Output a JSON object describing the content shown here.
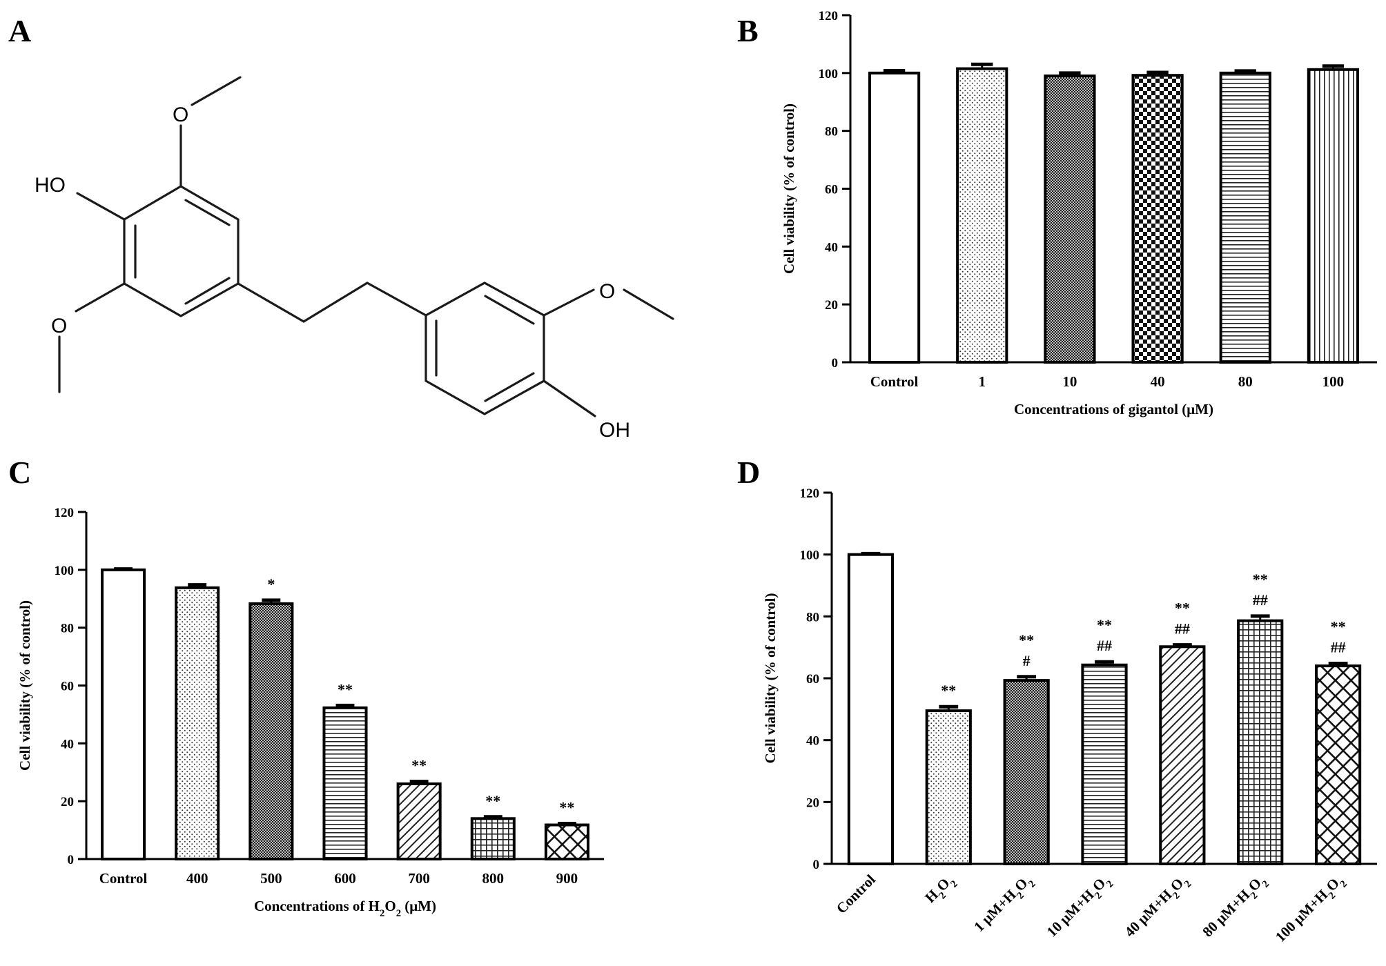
{
  "panels": {
    "A": {
      "letter": "A"
    },
    "B": {
      "letter": "B"
    },
    "C": {
      "letter": "C"
    },
    "D": {
      "letter": "D"
    }
  },
  "molecule": {
    "atoms": {
      "ho": "HO",
      "oh": "OH",
      "o1": "O",
      "o2": "O",
      "o3": "O"
    },
    "outline_color": "#1a1a1a"
  },
  "colors": {
    "bar_outline": "#000000",
    "bar_fill": "#ffffff",
    "pattern": "#222222"
  },
  "chart_data": [
    {
      "panel": "B",
      "type": "bar",
      "categories": [
        "Control",
        "1",
        "10",
        "40",
        "80",
        "100"
      ],
      "values": [
        100,
        101.5,
        99,
        99.2,
        100,
        101.2
      ],
      "errors": [
        0.8,
        1.5,
        1.0,
        1.0,
        0.7,
        1.2
      ],
      "patterns": [
        "none",
        "dots",
        "dense-check",
        "checker",
        "hlines",
        "vlines"
      ],
      "annotations": [],
      "xlabel": "Concentrations of gigantol  (μM)",
      "xlabel_parts": [],
      "ylabel": "Cell viability  (% of control)",
      "ylim": [
        0,
        120
      ],
      "yticks": [
        0,
        20,
        40,
        60,
        80,
        100,
        120
      ],
      "rotated_labels": false
    },
    {
      "panel": "C",
      "type": "bar",
      "categories": [
        "Control",
        "400",
        "500",
        "600",
        "700",
        "800",
        "900"
      ],
      "values": [
        100,
        93.8,
        88.3,
        52.3,
        26,
        14,
        11.8
      ],
      "errors": [
        0.3,
        1.0,
        1.2,
        0.8,
        0.8,
        0.6,
        0.5
      ],
      "patterns": [
        "none",
        "dots",
        "dense-check",
        "hlines",
        "diag",
        "grid",
        "crosshatch"
      ],
      "annotations": [
        [],
        [],
        [
          "*"
        ],
        [
          "**"
        ],
        [
          "**"
        ],
        [
          "**"
        ],
        [
          "**"
        ]
      ],
      "xlabel": "Concentrations of H2O2  (μM)",
      "xlabel_parts": [
        {
          "t": "Concentrations of H"
        },
        {
          "t": "2",
          "sub": true
        },
        {
          "t": "O"
        },
        {
          "t": "2",
          "sub": true
        },
        {
          "t": "  (μM)"
        }
      ],
      "ylabel": "Cell viability  (% of control)",
      "ylim": [
        0,
        120
      ],
      "yticks": [
        0,
        20,
        40,
        60,
        80,
        100,
        120
      ],
      "rotated_labels": false
    },
    {
      "panel": "D",
      "type": "bar",
      "categories": [
        "Control",
        "H2O2",
        "1 μM+H2O2",
        "10 μM+H2O2",
        "40 μM+H2O2",
        "80 μM+H2O2",
        "100 μM+H2O2"
      ],
      "category_parts": [
        [
          {
            "t": "Control"
          }
        ],
        [
          {
            "t": "H"
          },
          {
            "t": "2",
            "sub": true
          },
          {
            "t": "O"
          },
          {
            "t": "2",
            "sub": true
          }
        ],
        [
          {
            "t": "1 μM+H"
          },
          {
            "t": "2",
            "sub": true
          },
          {
            "t": "O"
          },
          {
            "t": "2",
            "sub": true
          }
        ],
        [
          {
            "t": "10 μM+H"
          },
          {
            "t": "2",
            "sub": true
          },
          {
            "t": "O"
          },
          {
            "t": "2",
            "sub": true
          }
        ],
        [
          {
            "t": "40 μM+H"
          },
          {
            "t": "2",
            "sub": true
          },
          {
            "t": "O"
          },
          {
            "t": "2",
            "sub": true
          }
        ],
        [
          {
            "t": "80 μM+H"
          },
          {
            "t": "2",
            "sub": true
          },
          {
            "t": "O"
          },
          {
            "t": "2",
            "sub": true
          }
        ],
        [
          {
            "t": "100 μM+H"
          },
          {
            "t": "2",
            "sub": true
          },
          {
            "t": "O"
          },
          {
            "t": "2",
            "sub": true
          }
        ]
      ],
      "values": [
        100,
        49.5,
        59.3,
        64.3,
        70.2,
        78.6,
        64
      ],
      "errors": [
        0.3,
        1.3,
        1.2,
        1.0,
        0.6,
        1.5,
        0.8
      ],
      "patterns": [
        "none",
        "dots",
        "dense-check",
        "hlines",
        "diag",
        "grid",
        "crosshatch"
      ],
      "annotations": [
        [],
        [
          "**"
        ],
        [
          "**",
          "#"
        ],
        [
          "**",
          "##"
        ],
        [
          "**",
          "##"
        ],
        [
          "**",
          "##"
        ],
        [
          "**",
          "##"
        ]
      ],
      "xlabel": "",
      "xlabel_parts": [],
      "ylabel": "Cell viability  (% of control)",
      "ylim": [
        0,
        120
      ],
      "yticks": [
        0,
        20,
        40,
        60,
        80,
        100,
        120
      ],
      "rotated_labels": true
    }
  ]
}
